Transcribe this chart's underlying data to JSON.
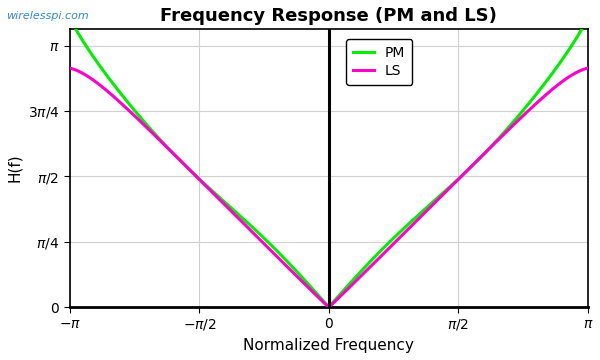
{
  "title": "Frequency Response (PM and LS)",
  "xlabel": "Normalized Frequency",
  "ylabel": "H(f)",
  "watermark": "wirelesspi.com",
  "xlim": [
    -3.14159265,
    3.14159265
  ],
  "ylim": [
    0,
    3.34159265
  ],
  "pm_color": "#00ee00",
  "ls_color": "#ff00cc",
  "line_width": 2.2,
  "legend_labels": [
    "PM",
    "LS"
  ],
  "grid_color": "#d0d0d0",
  "background_color": "#ffffff",
  "num_points": 2000,
  "pi": 3.14159265358979
}
